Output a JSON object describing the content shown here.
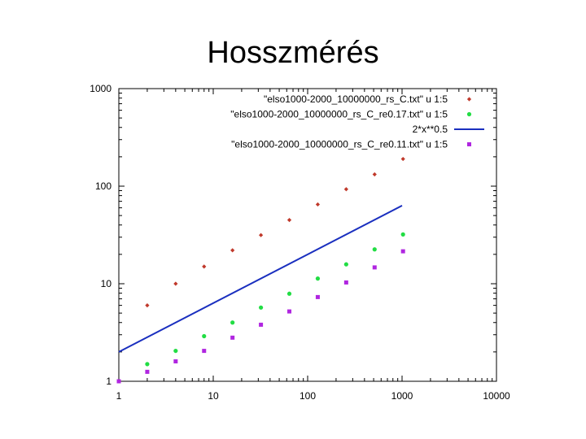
{
  "slide": {
    "title": "Hosszmérés"
  },
  "chart_data": {
    "type": "scatter",
    "title": "",
    "xlabel": "",
    "ylabel": "",
    "xscale": "log",
    "yscale": "log",
    "xlim": [
      1,
      10000
    ],
    "ylim": [
      1,
      1000
    ],
    "grid": false,
    "legend_position": "top-right",
    "x_ticks": [
      "1",
      "10",
      "100",
      "1000",
      "10000"
    ],
    "y_ticks": [
      "1",
      "10",
      "100",
      "1000"
    ],
    "x_tick_values": [
      1,
      10,
      100,
      1000,
      10000
    ],
    "y_tick_values": [
      1,
      10,
      100,
      1000
    ],
    "series": [
      {
        "name": "\"elso1000-2000_10000000_rs_C.txt\" u 1:5",
        "kind": "points",
        "marker": "diamond",
        "color": "#c0392b",
        "x": [
          2,
          4,
          8,
          16,
          32,
          64,
          128,
          256,
          512,
          1024
        ],
        "y": [
          6,
          10,
          15,
          22,
          31.5,
          45,
          65,
          93,
          132,
          190
        ]
      },
      {
        "name": "\"elso1000-2000_10000000_rs_C_re0.17.txt\" u 1:5",
        "kind": "points",
        "marker": "circle",
        "color": "#22dd44",
        "x": [
          2,
          4,
          8,
          16,
          32,
          64,
          128,
          256,
          512,
          1024
        ],
        "y": [
          1.5,
          2.05,
          2.9,
          4.0,
          5.7,
          7.9,
          11.3,
          15.8,
          22.5,
          32
        ]
      },
      {
        "name": "2*x**0.5",
        "kind": "line",
        "color": "#1a2fbf",
        "x": [
          1,
          1000
        ],
        "y": [
          2,
          63.2
        ]
      },
      {
        "name": "\"elso1000-2000_10000000_rs_C_re0.11.txt\" u 1:5",
        "kind": "points",
        "marker": "square",
        "color": "#b026e0",
        "x": [
          1,
          2,
          4,
          8,
          16,
          32,
          64,
          128,
          256,
          512,
          1024
        ],
        "y": [
          1,
          1.25,
          1.6,
          2.05,
          2.8,
          3.8,
          5.2,
          7.3,
          10.3,
          14.7,
          21.5
        ]
      }
    ]
  }
}
